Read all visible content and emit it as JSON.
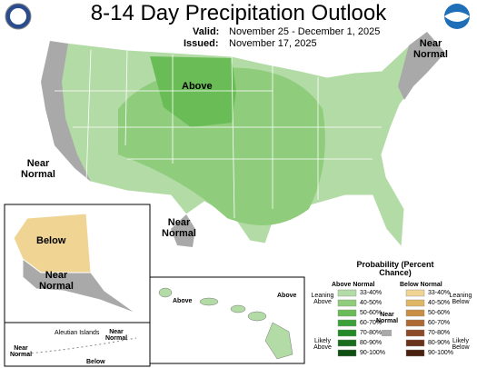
{
  "header": {
    "title": "8-14 Day Precipitation Outlook",
    "valid_label": "Valid:",
    "valid_text": "November 25 - December 1, 2025",
    "issued_label": "Issued:",
    "issued_text": "November 17, 2025"
  },
  "map_labels": {
    "above_conus": "Above",
    "near_normal_ne": "Near Normal",
    "near_normal_west": "Near Normal",
    "near_normal_texas": "Near Normal",
    "below_alaska": "Below",
    "near_normal_alaska": "Near Normal",
    "aleutian_islands": "Aleutian Islands",
    "near_normal_aleutian_east": "Near Normal",
    "near_normal_aleutian_west": "Near Normal",
    "below_aleutian": "Below",
    "above_hawaii_west": "Above",
    "above_hawaii_east": "Above"
  },
  "legend": {
    "title": "Probability (Percent Chance)",
    "above_header": "Above Normal",
    "below_header": "Below Normal",
    "above_classes": [
      {
        "label": "33-40%",
        "color": "#b3dba6"
      },
      {
        "label": "40-50%",
        "color": "#8fcc7c"
      },
      {
        "label": "50-60%",
        "color": "#6abd56"
      },
      {
        "label": "60-70%",
        "color": "#3da13a"
      },
      {
        "label": "70-80%",
        "color": "#228a26"
      },
      {
        "label": "80-90%",
        "color": "#1a6d1d"
      },
      {
        "label": "90-100%",
        "color": "#104f13"
      }
    ],
    "below_classes": [
      {
        "label": "33-40%",
        "color": "#f0d493"
      },
      {
        "label": "40-50%",
        "color": "#dfb566"
      },
      {
        "label": "50-60%",
        "color": "#c98e44"
      },
      {
        "label": "60-70%",
        "color": "#ad6a34"
      },
      {
        "label": "70-80%",
        "color": "#8c4a27"
      },
      {
        "label": "80-90%",
        "color": "#6b321b"
      },
      {
        "label": "90-100%",
        "color": "#4a2011"
      }
    ],
    "leaning_above": "Leaning Above",
    "likely_above": "Likely Above",
    "near_normal": "Near Normal",
    "leaning_below": "Leaning Below",
    "likely_below": "Likely Below"
  }
}
